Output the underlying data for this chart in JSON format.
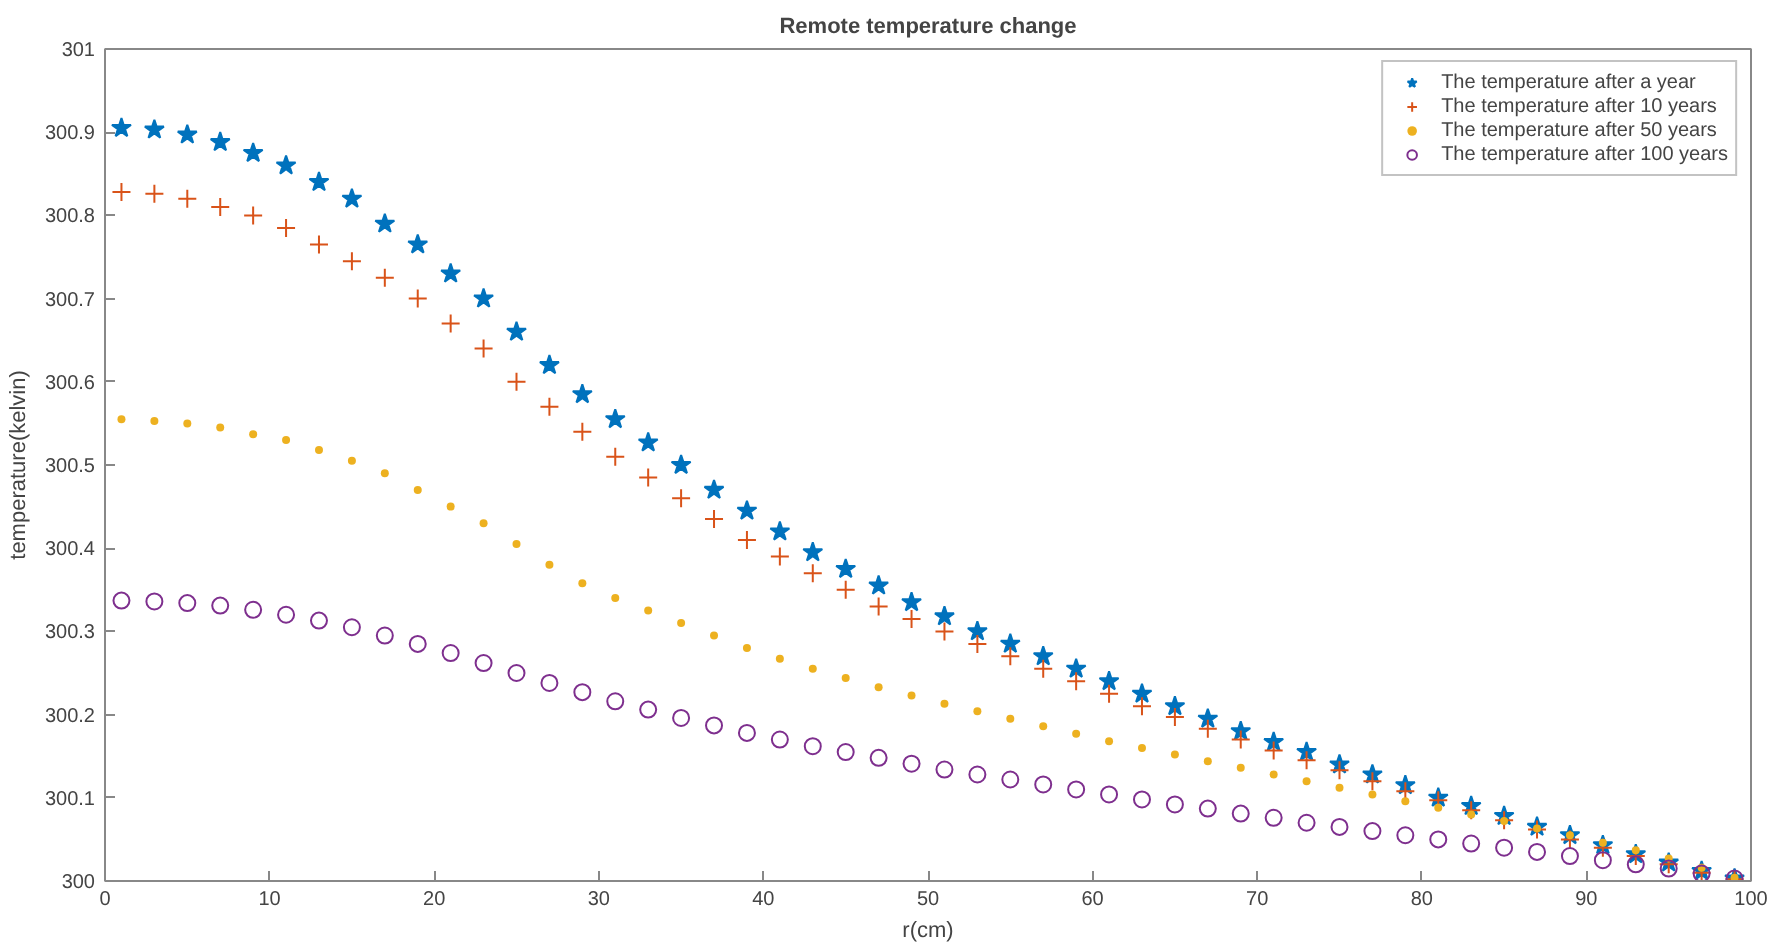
{
  "chart_data": {
    "type": "scatter",
    "title": "Remote temperature change",
    "xlabel": "r(cm)",
    "ylabel": "temperature(kelvin)",
    "x": [
      1,
      3,
      5,
      7,
      9,
      11,
      13,
      15,
      17,
      19,
      21,
      23,
      25,
      27,
      29,
      31,
      33,
      35,
      37,
      39,
      41,
      43,
      45,
      47,
      49,
      51,
      53,
      55,
      57,
      59,
      61,
      63,
      65,
      67,
      69,
      71,
      73,
      75,
      77,
      79,
      81,
      83,
      85,
      87,
      89,
      91,
      93,
      95,
      97,
      99
    ],
    "series": [
      {
        "name": "The temperature after a year",
        "color": "#0072bd",
        "marker": "star",
        "values": [
          300.905,
          300.903,
          300.897,
          300.888,
          300.875,
          300.86,
          300.84,
          300.82,
          300.79,
          300.765,
          300.73,
          300.7,
          300.66,
          300.62,
          300.585,
          300.555,
          300.527,
          300.5,
          300.47,
          300.445,
          300.42,
          300.395,
          300.375,
          300.355,
          300.335,
          300.318,
          300.3,
          300.285,
          300.27,
          300.255,
          300.24,
          300.225,
          300.21,
          300.195,
          300.18,
          300.167,
          300.155,
          300.14,
          300.128,
          300.115,
          300.1,
          300.09,
          300.078,
          300.065,
          300.055,
          300.043,
          300.032,
          300.022,
          300.012,
          300.003
        ]
      },
      {
        "name": "The temperature after 10 years",
        "color": "#d95319",
        "marker": "cross",
        "values": [
          300.828,
          300.826,
          300.82,
          300.81,
          300.8,
          300.785,
          300.765,
          300.745,
          300.725,
          300.7,
          300.67,
          300.64,
          300.6,
          300.57,
          300.54,
          300.51,
          300.485,
          300.46,
          300.435,
          300.41,
          300.39,
          300.37,
          300.35,
          300.33,
          300.315,
          300.3,
          300.285,
          300.27,
          300.255,
          300.24,
          300.225,
          300.21,
          300.197,
          300.183,
          300.17,
          300.157,
          300.145,
          300.133,
          300.12,
          300.108,
          300.097,
          300.085,
          300.073,
          300.062,
          300.05,
          300.04,
          300.03,
          300.02,
          300.01,
          300.002
        ]
      },
      {
        "name": "The temperature after 50 years",
        "color": "#edb120",
        "marker": "circle",
        "values": [
          300.555,
          300.553,
          300.55,
          300.545,
          300.537,
          300.53,
          300.518,
          300.505,
          300.49,
          300.47,
          300.45,
          300.43,
          300.405,
          300.38,
          300.358,
          300.34,
          300.325,
          300.31,
          300.295,
          300.28,
          300.267,
          300.255,
          300.244,
          300.233,
          300.223,
          300.213,
          300.204,
          300.195,
          300.186,
          300.177,
          300.168,
          300.16,
          300.152,
          300.144,
          300.136,
          300.128,
          300.12,
          300.112,
          300.104,
          300.096,
          300.088,
          300.08,
          300.072,
          300.063,
          300.055,
          300.046,
          300.037,
          300.027,
          300.016,
          300.004
        ]
      },
      {
        "name": "The temperature after 100 years",
        "color": "#7e2f8e",
        "marker": "circle",
        "values": [
          300.337,
          300.336,
          300.334,
          300.331,
          300.326,
          300.32,
          300.313,
          300.305,
          300.295,
          300.285,
          300.274,
          300.262,
          300.25,
          300.238,
          300.227,
          300.216,
          300.206,
          300.196,
          300.187,
          300.178,
          300.17,
          300.162,
          300.155,
          300.148,
          300.141,
          300.134,
          300.128,
          300.122,
          300.116,
          300.11,
          300.104,
          300.098,
          300.092,
          300.087,
          300.081,
          300.076,
          300.07,
          300.065,
          300.06,
          300.055,
          300.05,
          300.045,
          300.04,
          300.035,
          300.03,
          300.025,
          300.02,
          300.015,
          300.009,
          300.003
        ]
      }
    ],
    "xlim": [
      0,
      100
    ],
    "xticks": [
      0,
      10,
      20,
      30,
      40,
      50,
      60,
      70,
      80,
      90,
      100
    ],
    "ylim": [
      300,
      301
    ],
    "yticks": [
      300,
      300.1,
      300.2,
      300.3,
      300.4,
      300.5,
      300.6,
      300.7,
      300.8,
      300.9,
      301
    ],
    "grid": false,
    "legend": "top right"
  }
}
